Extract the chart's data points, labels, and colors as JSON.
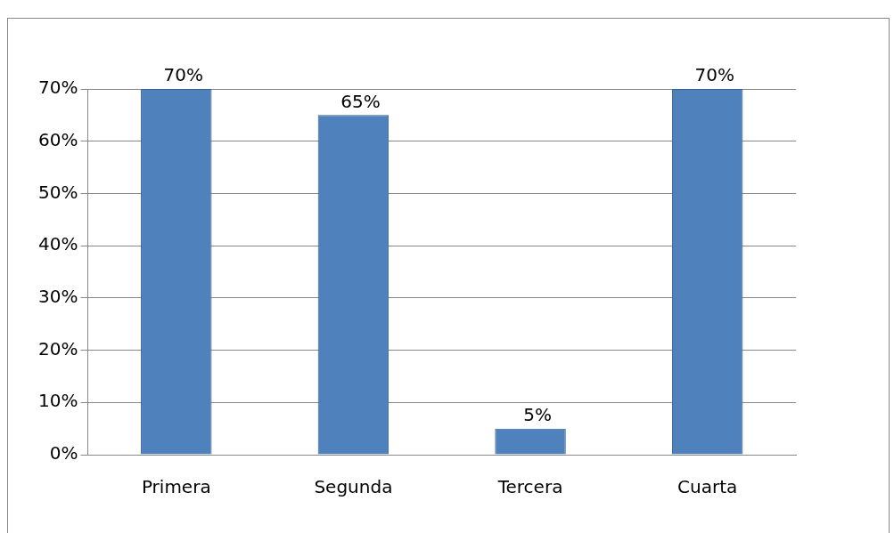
{
  "chart_data": {
    "type": "bar",
    "categories": [
      "Primera",
      "Segunda",
      "Tercera",
      "Cuarta"
    ],
    "values": [
      70,
      65,
      5,
      70
    ],
    "value_labels": [
      "70%",
      "65%",
      "5%",
      "70%"
    ],
    "color": "#4f81bd",
    "ylim": [
      0,
      70
    ],
    "yticks": [
      {
        "value": 0,
        "label": "0%"
      },
      {
        "value": 10,
        "label": "10%"
      },
      {
        "value": 20,
        "label": "20%"
      },
      {
        "value": 30,
        "label": "30%"
      },
      {
        "value": 40,
        "label": "40%"
      },
      {
        "value": 50,
        "label": "50%"
      },
      {
        "value": 60,
        "label": "60%"
      },
      {
        "value": 70,
        "label": "70%"
      }
    ],
    "grid": "y",
    "legend": false
  }
}
